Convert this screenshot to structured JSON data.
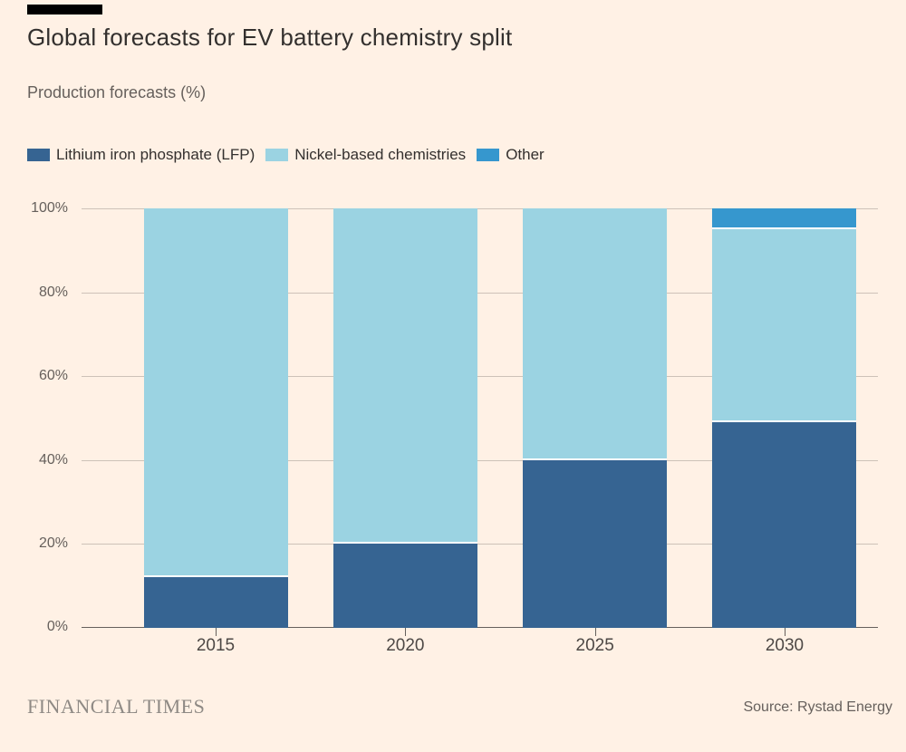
{
  "page": {
    "background": "#FFF1E5"
  },
  "header": {
    "title": "Global forecasts for EV battery chemistry split",
    "subtitle": "Production forecasts (%)"
  },
  "legend": [
    {
      "label": "Lithium iron phosphate (LFP)",
      "color": "#366492"
    },
    {
      "label": "Nickel-based chemistries",
      "color": "#9BD3E2"
    },
    {
      "label": "Other",
      "color": "#3697CE"
    }
  ],
  "chart_data": {
    "type": "bar",
    "stacked": true,
    "title": "Global forecasts for EV battery chemistry split",
    "ylabel": "Production forecasts (%)",
    "xlabel": "",
    "categories": [
      "2015",
      "2020",
      "2025",
      "2030"
    ],
    "series": [
      {
        "key": "lfp",
        "name": "Lithium iron phosphate (LFP)",
        "color": "#366492",
        "values": [
          12,
          20,
          40,
          49
        ]
      },
      {
        "key": "nickel",
        "name": "Nickel-based chemistries",
        "color": "#9BD3E2",
        "values": [
          88,
          80,
          60,
          46
        ]
      },
      {
        "key": "other",
        "name": "Other",
        "color": "#3697CE",
        "values": [
          0,
          0,
          0,
          5
        ]
      }
    ],
    "ylim": [
      0,
      100
    ],
    "yticks": [
      "0%",
      "20%",
      "40%",
      "60%",
      "80%",
      "100%"
    ],
    "grid": true,
    "legend_position": "top"
  },
  "footer": {
    "brand": "FINANCIAL TIMES",
    "source": "Source: Rystad Energy"
  }
}
